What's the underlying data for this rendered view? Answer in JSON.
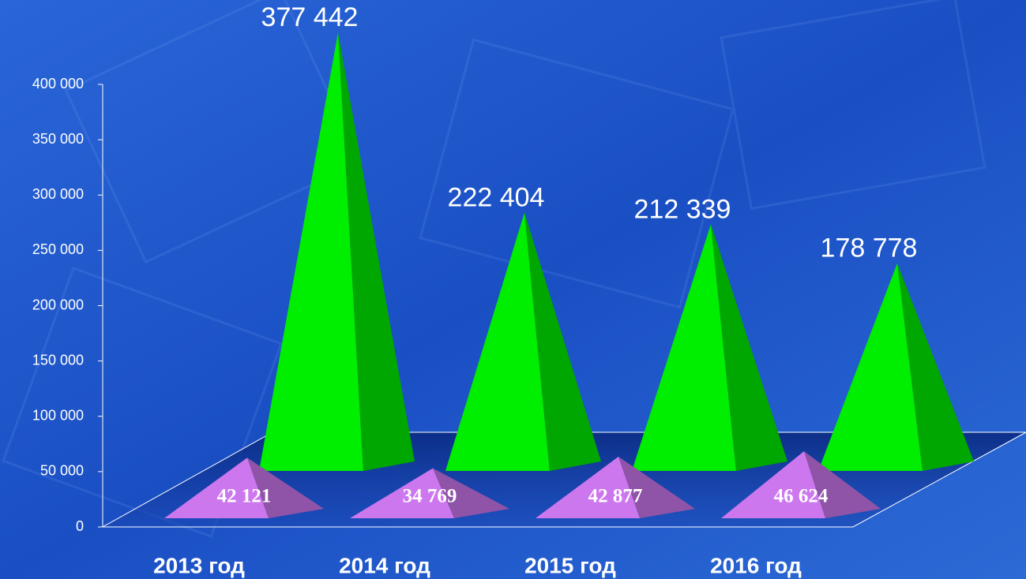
{
  "chart_data": {
    "type": "pyramid3d",
    "categories": [
      "2013 год",
      "2014 год",
      "2015 год",
      "2016 год"
    ],
    "series": [
      {
        "color": "#00ee00",
        "values": [
          377442,
          222404,
          212339,
          178778
        ],
        "value_labels": [
          "377 442",
          "222 404",
          "212 339",
          "178 778"
        ]
      },
      {
        "color": "#cc77ee",
        "values": [
          42121,
          34769,
          42877,
          46624
        ],
        "value_labels": [
          "42 121",
          "34 769",
          "42 877",
          "46 624"
        ]
      }
    ],
    "ylim": [
      0,
      400000
    ],
    "yticks": [
      {
        "value": 0,
        "label": "0"
      },
      {
        "value": 50000,
        "label": "50 000"
      },
      {
        "value": 100000,
        "label": "100 000"
      },
      {
        "value": 150000,
        "label": "150 000"
      },
      {
        "value": 200000,
        "label": "200 000"
      },
      {
        "value": 250000,
        "label": "250 000"
      },
      {
        "value": 300000,
        "label": "300 000"
      },
      {
        "value": 350000,
        "label": "350 000"
      },
      {
        "value": 400000,
        "label": "400 000"
      }
    ]
  }
}
